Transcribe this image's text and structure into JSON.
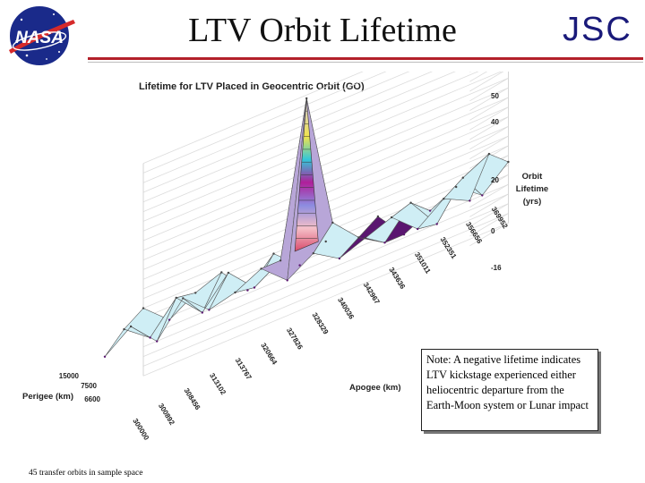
{
  "header": {
    "logo_text": "NASA",
    "title": "LTV Orbit Lifetime",
    "org": "JSC",
    "accent_color": "#b3202a",
    "logo_color": "#1a2a8a"
  },
  "note": "Note: A negative lifetime indicates LTV kickstage experienced either heliocentric departure from the Earth-Moon system or Lunar impact",
  "footnote": "45 transfer orbits in sample space",
  "chart_data": {
    "type": "surface3d",
    "title": "Lifetime for LTV Placed in Geocentric Orbit (GO)",
    "zlabel": "Orbit Lifetime (yrs)",
    "xlabel": "Apogee (km)",
    "ylabel": "Perigee (km)",
    "z_ticks": [
      "50",
      "40",
      "20",
      "0",
      "-16"
    ],
    "zlim": [
      -16,
      50
    ],
    "x_ticks": [
      "300000",
      "300892",
      "308456",
      "313102",
      "313767",
      "320664",
      "327826",
      "328329",
      "340036",
      "342967",
      "343636",
      "351011",
      "352351",
      "356656",
      "369952"
    ],
    "y_ticks": [
      "15000",
      "7500",
      "6600"
    ],
    "series": [
      {
        "perigee": "15000",
        "values": [
          -3,
          3,
          -5,
          5,
          -2,
          0,
          4,
          -3,
          2,
          -3,
          0,
          3,
          -4,
          2,
          -2
        ]
      },
      {
        "perigee": "7500",
        "values": [
          2,
          -4,
          5,
          -3,
          6,
          -2,
          3,
          50,
          8,
          0,
          -5,
          4,
          -6,
          5,
          9
        ]
      },
      {
        "perigee": "6600",
        "values": [
          5,
          -2,
          3,
          6,
          -3,
          5,
          -2,
          2,
          -3,
          3,
          -6,
          -2,
          2,
          -4,
          3
        ]
      }
    ],
    "grid": true,
    "legend": "none",
    "colors": {
      "surface": "#cfeef5",
      "negative": "#5a1670",
      "mesh": "#555555"
    }
  }
}
